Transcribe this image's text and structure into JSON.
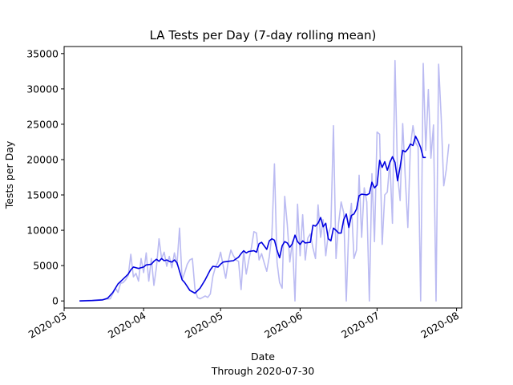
{
  "chart_data": {
    "type": "line",
    "title": "LA Tests per Day (7-day rolling mean)",
    "xlabel": "Date",
    "xlabel_sub": "Through 2020-07-30",
    "ylabel": "Tests per Day",
    "xlim": [
      "2020-03-01",
      "2020-08-03"
    ],
    "ylim": [
      -1000,
      36000
    ],
    "yticks": [
      0,
      5000,
      10000,
      15000,
      20000,
      25000,
      30000,
      35000
    ],
    "xticks": [
      "2020-03",
      "2020-04",
      "2020-05",
      "2020-06",
      "2020-07",
      "2020-08"
    ],
    "xtick_dates": [
      "2020-03-01",
      "2020-04-01",
      "2020-05-01",
      "2020-06-01",
      "2020-07-01",
      "2020-08-01"
    ],
    "grid": false,
    "series": [
      {
        "role": "daily",
        "color": "#bbbbf2",
        "points": [
          [
            "2020-03-07",
            0
          ],
          [
            "2020-03-12",
            100
          ],
          [
            "2020-03-16",
            200
          ],
          [
            "2020-03-19",
            300
          ],
          [
            "2020-03-21",
            1800
          ],
          [
            "2020-03-22",
            1200
          ],
          [
            "2020-03-23",
            2500
          ],
          [
            "2020-03-24",
            2600
          ],
          [
            "2020-03-25",
            3000
          ],
          [
            "2020-03-26",
            3600
          ],
          [
            "2020-03-27",
            6600
          ],
          [
            "2020-03-28",
            3400
          ],
          [
            "2020-03-29",
            3900
          ],
          [
            "2020-03-30",
            2800
          ],
          [
            "2020-03-31",
            6000
          ],
          [
            "2020-04-01",
            4000
          ],
          [
            "2020-04-02",
            6800
          ],
          [
            "2020-04-03",
            2800
          ],
          [
            "2020-04-04",
            6000
          ],
          [
            "2020-04-05",
            2200
          ],
          [
            "2020-04-06",
            4800
          ],
          [
            "2020-04-07",
            8800
          ],
          [
            "2020-04-08",
            6000
          ],
          [
            "2020-04-09",
            6900
          ],
          [
            "2020-04-10",
            4900
          ],
          [
            "2020-04-11",
            6300
          ],
          [
            "2020-04-12",
            4700
          ],
          [
            "2020-04-13",
            6800
          ],
          [
            "2020-04-14",
            5200
          ],
          [
            "2020-04-15",
            10300
          ],
          [
            "2020-04-16",
            3000
          ],
          [
            "2020-04-17",
            4000
          ],
          [
            "2020-04-18",
            5200
          ],
          [
            "2020-04-19",
            5800
          ],
          [
            "2020-04-20",
            6000
          ],
          [
            "2020-04-21",
            1700
          ],
          [
            "2020-04-22",
            500
          ],
          [
            "2020-04-23",
            300
          ],
          [
            "2020-04-24",
            500
          ],
          [
            "2020-04-25",
            700
          ],
          [
            "2020-04-26",
            500
          ],
          [
            "2020-04-27",
            1000
          ],
          [
            "2020-04-28",
            3500
          ],
          [
            "2020-04-29",
            4800
          ],
          [
            "2020-04-30",
            5500
          ],
          [
            "2020-05-01",
            6900
          ],
          [
            "2020-05-02",
            5000
          ],
          [
            "2020-05-03",
            3200
          ],
          [
            "2020-05-04",
            5600
          ],
          [
            "2020-05-05",
            7200
          ],
          [
            "2020-05-06",
            6400
          ],
          [
            "2020-05-07",
            5800
          ],
          [
            "2020-05-08",
            5600
          ],
          [
            "2020-05-09",
            1600
          ],
          [
            "2020-05-10",
            7100
          ],
          [
            "2020-05-11",
            3800
          ],
          [
            "2020-05-12",
            5800
          ],
          [
            "2020-05-13",
            7500
          ],
          [
            "2020-05-14",
            9800
          ],
          [
            "2020-05-15",
            9600
          ],
          [
            "2020-05-16",
            5800
          ],
          [
            "2020-05-17",
            6700
          ],
          [
            "2020-05-18",
            5400
          ],
          [
            "2020-05-19",
            4200
          ],
          [
            "2020-05-20",
            6300
          ],
          [
            "2020-05-21",
            9300
          ],
          [
            "2020-05-22",
            19400
          ],
          [
            "2020-05-23",
            5500
          ],
          [
            "2020-05-24",
            2600
          ],
          [
            "2020-05-25",
            1800
          ],
          [
            "2020-05-26",
            14800
          ],
          [
            "2020-05-27",
            10800
          ],
          [
            "2020-05-28",
            5500
          ],
          [
            "2020-05-29",
            8500
          ],
          [
            "2020-05-30",
            0
          ],
          [
            "2020-05-31",
            13700
          ],
          [
            "2020-06-01",
            6400
          ],
          [
            "2020-06-02",
            12200
          ],
          [
            "2020-06-03",
            5800
          ],
          [
            "2020-06-04",
            8900
          ],
          [
            "2020-06-05",
            9500
          ],
          [
            "2020-06-06",
            7500
          ],
          [
            "2020-06-07",
            6000
          ],
          [
            "2020-06-08",
            13600
          ],
          [
            "2020-06-09",
            9000
          ],
          [
            "2020-06-10",
            11500
          ],
          [
            "2020-06-11",
            6400
          ],
          [
            "2020-06-12",
            9500
          ],
          [
            "2020-06-13",
            10500
          ],
          [
            "2020-06-14",
            24800
          ],
          [
            "2020-06-15",
            6000
          ],
          [
            "2020-06-16",
            11000
          ],
          [
            "2020-06-17",
            14000
          ],
          [
            "2020-06-18",
            12500
          ],
          [
            "2020-06-19",
            0
          ],
          [
            "2020-06-20",
            10500
          ],
          [
            "2020-06-21",
            13800
          ],
          [
            "2020-06-22",
            6000
          ],
          [
            "2020-06-23",
            7200
          ],
          [
            "2020-06-24",
            17800
          ],
          [
            "2020-06-25",
            9000
          ],
          [
            "2020-06-26",
            16000
          ],
          [
            "2020-06-27",
            14000
          ],
          [
            "2020-06-28",
            0
          ],
          [
            "2020-06-29",
            18000
          ],
          [
            "2020-06-30",
            8400
          ],
          [
            "2020-07-01",
            23900
          ],
          [
            "2020-07-02",
            23600
          ],
          [
            "2020-07-03",
            8000
          ],
          [
            "2020-07-04",
            15000
          ],
          [
            "2020-07-05",
            15400
          ],
          [
            "2020-07-06",
            19800
          ],
          [
            "2020-07-07",
            11000
          ],
          [
            "2020-07-08",
            34000
          ],
          [
            "2020-07-09",
            17800
          ],
          [
            "2020-07-10",
            14200
          ],
          [
            "2020-07-11",
            25100
          ],
          [
            "2020-07-12",
            17500
          ],
          [
            "2020-07-13",
            10400
          ],
          [
            "2020-07-14",
            21900
          ],
          [
            "2020-07-15",
            24800
          ],
          [
            "2020-07-16",
            22400
          ],
          [
            "2020-07-17",
            21800
          ],
          [
            "2020-07-18",
            0
          ],
          [
            "2020-07-19",
            33600
          ],
          [
            "2020-07-20",
            21300
          ],
          [
            "2020-07-21",
            29900
          ],
          [
            "2020-07-22",
            20200
          ],
          [
            "2020-07-23",
            24900
          ],
          [
            "2020-07-24",
            0
          ],
          [
            "2020-07-25",
            33500
          ],
          [
            "2020-07-26",
            26000
          ],
          [
            "2020-07-27",
            16300
          ],
          [
            "2020-07-28",
            18600
          ],
          [
            "2020-07-29",
            22200
          ]
        ]
      },
      {
        "role": "rolling-mean",
        "color": "#0000e0",
        "points": [
          [
            "2020-03-07",
            0
          ],
          [
            "2020-03-12",
            50
          ],
          [
            "2020-03-16",
            150
          ],
          [
            "2020-03-18",
            400
          ],
          [
            "2020-03-20",
            1200
          ],
          [
            "2020-03-22",
            2400
          ],
          [
            "2020-03-24",
            3100
          ],
          [
            "2020-03-26",
            3800
          ],
          [
            "2020-03-27",
            4400
          ],
          [
            "2020-03-28",
            4800
          ],
          [
            "2020-03-30",
            4600
          ],
          [
            "2020-04-01",
            4800
          ],
          [
            "2020-04-02",
            5100
          ],
          [
            "2020-04-04",
            5200
          ],
          [
            "2020-04-05",
            5600
          ],
          [
            "2020-04-06",
            5900
          ],
          [
            "2020-04-07",
            5600
          ],
          [
            "2020-04-08",
            6000
          ],
          [
            "2020-04-09",
            5700
          ],
          [
            "2020-04-10",
            5800
          ],
          [
            "2020-04-11",
            5600
          ],
          [
            "2020-04-12",
            5500
          ],
          [
            "2020-04-13",
            5800
          ],
          [
            "2020-04-14",
            5400
          ],
          [
            "2020-04-16",
            3000
          ],
          [
            "2020-04-17",
            2600
          ],
          [
            "2020-04-19",
            1500
          ],
          [
            "2020-04-21",
            1100
          ],
          [
            "2020-04-23",
            1800
          ],
          [
            "2020-04-25",
            3000
          ],
          [
            "2020-04-27",
            4400
          ],
          [
            "2020-04-28",
            4900
          ],
          [
            "2020-04-30",
            4800
          ],
          [
            "2020-05-01",
            5200
          ],
          [
            "2020-05-02",
            5500
          ],
          [
            "2020-05-04",
            5600
          ],
          [
            "2020-05-06",
            5700
          ],
          [
            "2020-05-08",
            6200
          ],
          [
            "2020-05-09",
            6700
          ],
          [
            "2020-05-10",
            7100
          ],
          [
            "2020-05-11",
            6800
          ],
          [
            "2020-05-12",
            7000
          ],
          [
            "2020-05-14",
            7100
          ],
          [
            "2020-05-15",
            6900
          ],
          [
            "2020-05-16",
            8100
          ],
          [
            "2020-05-17",
            8300
          ],
          [
            "2020-05-18",
            7800
          ],
          [
            "2020-05-19",
            7300
          ],
          [
            "2020-05-20",
            8500
          ],
          [
            "2020-05-21",
            8800
          ],
          [
            "2020-05-22",
            8600
          ],
          [
            "2020-05-23",
            7200
          ],
          [
            "2020-05-24",
            6100
          ],
          [
            "2020-05-25",
            7800
          ],
          [
            "2020-05-26",
            8400
          ],
          [
            "2020-05-27",
            8200
          ],
          [
            "2020-05-28",
            7600
          ],
          [
            "2020-05-29",
            8100
          ],
          [
            "2020-05-30",
            9300
          ],
          [
            "2020-05-31",
            8400
          ],
          [
            "2020-06-01",
            8000
          ],
          [
            "2020-06-02",
            8500
          ],
          [
            "2020-06-03",
            8200
          ],
          [
            "2020-06-05",
            8300
          ],
          [
            "2020-06-06",
            10700
          ],
          [
            "2020-06-07",
            10600
          ],
          [
            "2020-06-08",
            11000
          ],
          [
            "2020-06-09",
            11800
          ],
          [
            "2020-06-10",
            10500
          ],
          [
            "2020-06-11",
            11000
          ],
          [
            "2020-06-12",
            8800
          ],
          [
            "2020-06-13",
            8500
          ],
          [
            "2020-06-14",
            10300
          ],
          [
            "2020-06-15",
            10000
          ],
          [
            "2020-06-16",
            9600
          ],
          [
            "2020-06-17",
            9600
          ],
          [
            "2020-06-18",
            11500
          ],
          [
            "2020-06-19",
            12300
          ],
          [
            "2020-06-20",
            10400
          ],
          [
            "2020-06-21",
            12100
          ],
          [
            "2020-06-22",
            12300
          ],
          [
            "2020-06-23",
            13000
          ],
          [
            "2020-06-24",
            14900
          ],
          [
            "2020-06-25",
            15100
          ],
          [
            "2020-06-27",
            15000
          ],
          [
            "2020-06-28",
            15200
          ],
          [
            "2020-06-29",
            16800
          ],
          [
            "2020-06-30",
            16000
          ],
          [
            "2020-07-01",
            16400
          ],
          [
            "2020-07-02",
            19900
          ],
          [
            "2020-07-03",
            18900
          ],
          [
            "2020-07-04",
            19700
          ],
          [
            "2020-07-05",
            18500
          ],
          [
            "2020-07-06",
            19600
          ],
          [
            "2020-07-07",
            20400
          ],
          [
            "2020-07-08",
            19600
          ],
          [
            "2020-07-09",
            17000
          ],
          [
            "2020-07-10",
            19000
          ],
          [
            "2020-07-11",
            21300
          ],
          [
            "2020-07-12",
            21100
          ],
          [
            "2020-07-13",
            21500
          ],
          [
            "2020-07-14",
            22200
          ],
          [
            "2020-07-15",
            22000
          ],
          [
            "2020-07-16",
            23300
          ],
          [
            "2020-07-17",
            22600
          ],
          [
            "2020-07-18",
            21700
          ],
          [
            "2020-07-19",
            20300
          ],
          [
            "2020-07-20",
            20300
          ]
        ]
      }
    ]
  }
}
